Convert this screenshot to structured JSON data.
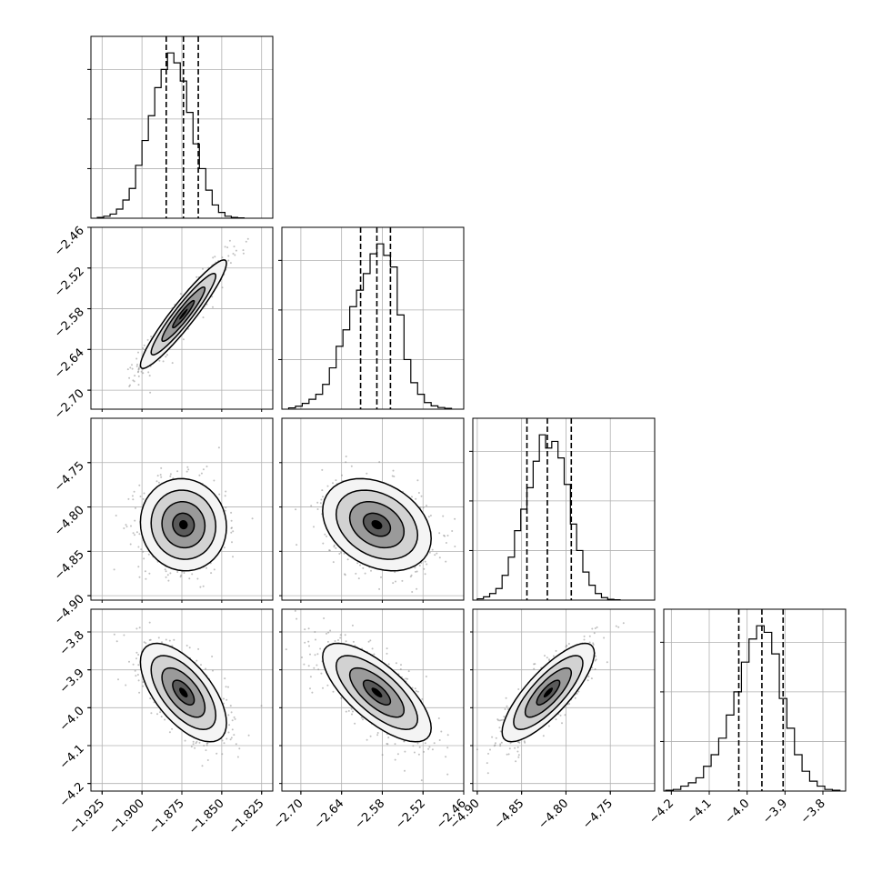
{
  "colors": {
    "ink": "#000000",
    "grid": "#b0b0b0",
    "scatter": "#8c8c8c"
  },
  "chart_data": {
    "type": "corner",
    "grid": true,
    "quantile_lines": "dashed",
    "parameters": [
      {
        "index": 0,
        "range": [
          -1.932,
          -1.818
        ],
        "ticks": [
          -1.925,
          -1.9,
          -1.875,
          -1.85,
          -1.825
        ],
        "tick_labels": [
          "−1.925",
          "−1.900",
          "−1.875",
          "−1.850",
          "−1.825"
        ],
        "quantiles": [
          -1.8848,
          -1.874,
          -1.8647
        ],
        "hist_bins": [
          -1.928,
          -1.924,
          -1.92,
          -1.916,
          -1.912,
          -1.908,
          -1.904,
          -1.9,
          -1.896,
          -1.892,
          -1.888,
          -1.884,
          -1.88,
          -1.876,
          -1.872,
          -1.868,
          -1.864,
          -1.86,
          -1.856,
          -1.852,
          -1.848,
          -1.844,
          -1.84,
          -1.836
        ],
        "hist_counts": [
          0.005,
          0.012,
          0.025,
          0.055,
          0.11,
          0.18,
          0.32,
          0.47,
          0.62,
          0.79,
          0.9,
          1.0,
          0.94,
          0.83,
          0.64,
          0.45,
          0.3,
          0.17,
          0.08,
          0.035,
          0.012,
          0.005,
          0.002
        ]
      },
      {
        "index": 1,
        "range": [
          -2.728,
          -2.46
        ],
        "ticks": [
          -2.7,
          -2.64,
          -2.58,
          -2.52,
          -2.46
        ],
        "tick_labels": [
          "−2.70",
          "−2.64",
          "−2.58",
          "−2.52",
          "−2.46"
        ],
        "quantiles": [
          -2.612,
          -2.588,
          -2.568
        ],
        "hist_bins": [
          -2.718,
          -2.708,
          -2.698,
          -2.688,
          -2.678,
          -2.668,
          -2.658,
          -2.648,
          -2.638,
          -2.628,
          -2.618,
          -2.608,
          -2.598,
          -2.588,
          -2.578,
          -2.568,
          -2.558,
          -2.548,
          -2.538,
          -2.528,
          -2.518,
          -2.508,
          -2.498,
          -2.488,
          -2.478
        ],
        "hist_counts": [
          0.008,
          0.018,
          0.035,
          0.06,
          0.09,
          0.15,
          0.25,
          0.38,
          0.48,
          0.62,
          0.72,
          0.82,
          0.94,
          1.0,
          0.93,
          0.86,
          0.57,
          0.3,
          0.16,
          0.09,
          0.04,
          0.02,
          0.01,
          0.005
        ]
      },
      {
        "index": 2,
        "range": [
          -4.905,
          -4.7
        ],
        "ticks": [
          -4.9,
          -4.85,
          -4.8,
          -4.75
        ],
        "tick_labels": [
          "−4.90",
          "−4.85",
          "−4.80",
          "−4.75"
        ],
        "quantiles": [
          -4.844,
          -4.821,
          -4.794
        ],
        "hist_bins": [
          -4.9,
          -4.893,
          -4.886,
          -4.879,
          -4.872,
          -4.865,
          -4.858,
          -4.851,
          -4.844,
          -4.837,
          -4.83,
          -4.823,
          -4.816,
          -4.809,
          -4.802,
          -4.795,
          -4.788,
          -4.781,
          -4.774,
          -4.767,
          -4.76,
          -4.753,
          -4.746,
          -4.739
        ],
        "hist_counts": [
          0.008,
          0.02,
          0.04,
          0.07,
          0.15,
          0.26,
          0.42,
          0.55,
          0.68,
          0.84,
          1.0,
          0.92,
          0.96,
          0.86,
          0.7,
          0.46,
          0.3,
          0.17,
          0.09,
          0.04,
          0.015,
          0.005,
          0.002
        ]
      },
      {
        "index": 3,
        "range": [
          -4.22,
          -3.74
        ],
        "ticks": [
          -4.2,
          -4.1,
          -4.0,
          -3.9,
          -3.8
        ],
        "tick_labels": [
          "−4.2",
          "−4.1",
          "−4.0",
          "−3.9",
          "−3.8"
        ],
        "quantiles": [
          -4.022,
          -3.961,
          -3.905
        ],
        "hist_bins": [
          -4.215,
          -4.195,
          -4.175,
          -4.155,
          -4.135,
          -4.115,
          -4.095,
          -4.075,
          -4.055,
          -4.035,
          -4.015,
          -3.995,
          -3.975,
          -3.955,
          -3.935,
          -3.915,
          -3.895,
          -3.875,
          -3.855,
          -3.835,
          -3.815,
          -3.795,
          -3.775,
          -3.755
        ],
        "hist_counts": [
          0.005,
          0.01,
          0.03,
          0.05,
          0.08,
          0.15,
          0.22,
          0.32,
          0.46,
          0.6,
          0.78,
          0.92,
          1.0,
          0.96,
          0.83,
          0.56,
          0.38,
          0.22,
          0.12,
          0.06,
          0.03,
          0.01,
          0.005
        ]
      }
    ],
    "pairs": [
      {
        "x": 0,
        "y": 1,
        "mean": [
          -1.874,
          -2.588
        ],
        "sd": [
          0.0135,
          0.04
        ],
        "corr": 0.94
      },
      {
        "x": 0,
        "y": 2,
        "mean": [
          -1.874,
          -4.82
        ],
        "sd": [
          0.0135,
          0.026
        ],
        "corr": -0.05
      },
      {
        "x": 1,
        "y": 2,
        "mean": [
          -2.588,
          -4.82
        ],
        "sd": [
          0.04,
          0.026
        ],
        "corr": -0.3
      },
      {
        "x": 0,
        "y": 3,
        "mean": [
          -1.874,
          -3.96
        ],
        "sd": [
          0.0135,
          0.065
        ],
        "corr": -0.62
      },
      {
        "x": 1,
        "y": 3,
        "mean": [
          -2.588,
          -3.96
        ],
        "sd": [
          0.04,
          0.065
        ],
        "corr": -0.72
      },
      {
        "x": 2,
        "y": 3,
        "mean": [
          -4.82,
          -3.96
        ],
        "sd": [
          0.026,
          0.065
        ],
        "corr": 0.8
      }
    ],
    "contour_levels_sigma": [
      0.5,
      1.0,
      1.5,
      2.0
    ]
  }
}
